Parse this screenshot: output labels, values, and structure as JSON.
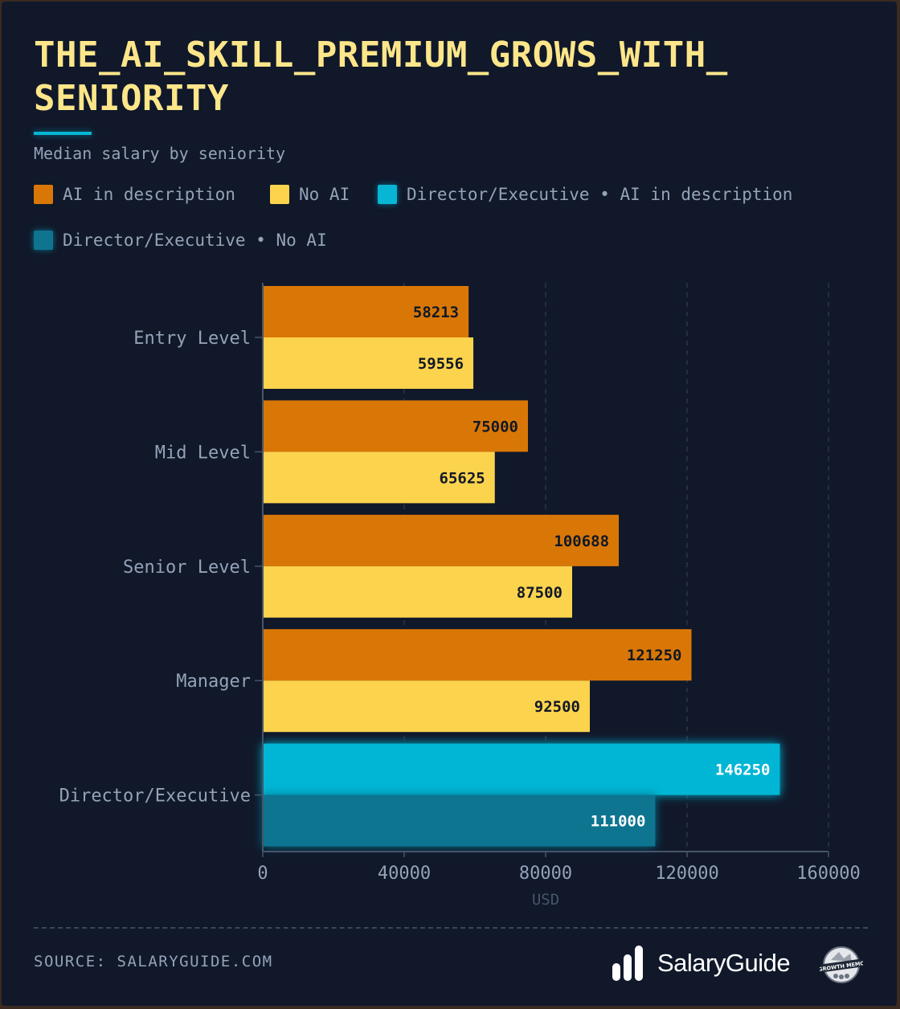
{
  "header": {
    "title_line1": "THE_AI_SKILL_PREMIUM_GROWS_WITH_",
    "title_line2": "SENIORITY",
    "subtitle": "Median salary by seniority"
  },
  "legend": [
    {
      "label": "AI in description",
      "color": "#d97706"
    },
    {
      "label": "No AI",
      "color": "#fcd34d"
    },
    {
      "label": "Director/Executive • AI in description",
      "color": "#06b6d4"
    },
    {
      "label": "Director/Executive • No AI",
      "color": "#0e7490"
    }
  ],
  "chart_data": {
    "type": "bar",
    "orientation": "horizontal",
    "title": "THE_AI_SKILL_PREMIUM_GROWS_WITH_SENIORITY",
    "subtitle": "Median salary by seniority",
    "xlabel": "USD",
    "ylabel": "",
    "xlim": [
      0,
      160000
    ],
    "xticks": [
      0,
      40000,
      80000,
      120000,
      160000
    ],
    "grid": "vertical dashed",
    "legend_position": "top-left",
    "categories": [
      "Entry Level",
      "Mid Level",
      "Senior Level",
      "Manager",
      "Director/Executive"
    ],
    "series": [
      {
        "name": "AI in description",
        "values": [
          58213,
          75000,
          100688,
          121250,
          146250
        ]
      },
      {
        "name": "No AI",
        "values": [
          59556,
          65625,
          87500,
          92500,
          111000
        ]
      }
    ],
    "highlight": {
      "category": "Director/Executive",
      "series_labels": [
        "Director/Executive • AI in description",
        "Director/Executive • No AI"
      ],
      "colors": [
        "#06b6d4",
        "#0e7490"
      ]
    },
    "colors": [
      "#d97706",
      "#fcd34d"
    ]
  },
  "footer": {
    "source": "SOURCE: SALARYGUIDE.COM",
    "brand": "SalaryGuide",
    "badge": "GROWTH MEMO"
  }
}
